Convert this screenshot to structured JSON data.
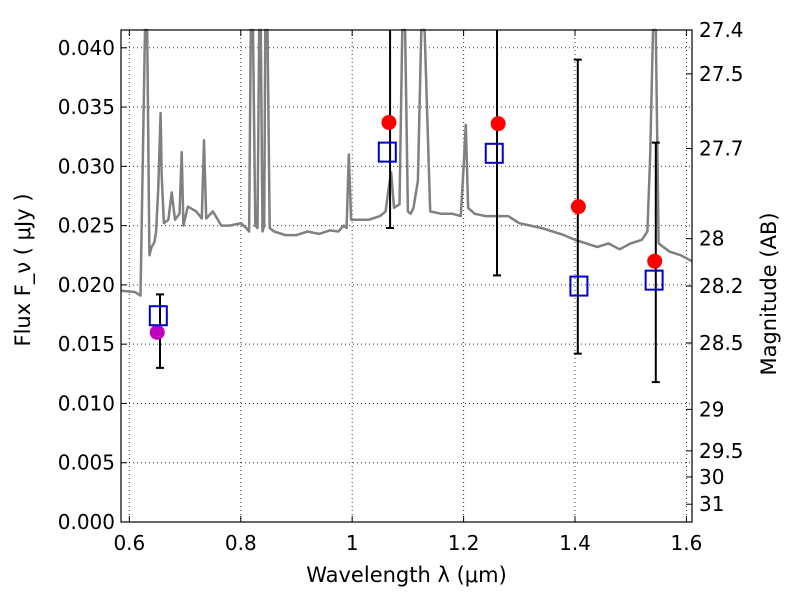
{
  "chart_data": {
    "type": "scatter",
    "title": "",
    "xlabel": "Wavelength  λ (μm)",
    "ylabel": "Flux  F_ν  ( μJy )",
    "ylabel_right": "Magnitude (AB)",
    "xlim": [
      0.585,
      1.61
    ],
    "ylim": [
      0.0,
      0.0415
    ],
    "grid": true,
    "x_ticks": [
      0.6,
      0.8,
      1.0,
      1.2,
      1.4,
      1.6
    ],
    "x_tick_labels": [
      "0.6",
      "0.8",
      "1",
      "1.2",
      "1.4",
      "1.6"
    ],
    "y_ticks": [
      0.0,
      0.005,
      0.01,
      0.015,
      0.02,
      0.025,
      0.03,
      0.035,
      0.04
    ],
    "y_tick_labels": [
      "0.000",
      "0.005",
      "0.010",
      "0.015",
      "0.020",
      "0.025",
      "0.030",
      "0.035",
      "0.040"
    ],
    "right_ticks": [
      {
        "label": "27.4",
        "flux": 0.0415
      },
      {
        "label": "27.5",
        "flux": 0.0378
      },
      {
        "label": "27.7",
        "flux": 0.0315
      },
      {
        "label": "28",
        "flux": 0.0239
      },
      {
        "label": "28.2",
        "flux": 0.0199
      },
      {
        "label": "28.5",
        "flux": 0.0151
      },
      {
        "label": "29",
        "flux": 0.0095
      },
      {
        "label": "29.5",
        "flux": 0.006
      },
      {
        "label": "30",
        "flux": 0.0038
      },
      {
        "label": "31",
        "flux": 0.0015
      }
    ],
    "series": [
      {
        "kind": "model-spectrum",
        "color": "#808080",
        "points": [
          [
            0.585,
            0.0195
          ],
          [
            0.61,
            0.0194
          ],
          [
            0.62,
            0.0191
          ],
          [
            0.628,
            0.0415
          ],
          [
            0.632,
            0.0415
          ],
          [
            0.636,
            0.0225
          ],
          [
            0.64,
            0.0232
          ],
          [
            0.645,
            0.0236
          ],
          [
            0.648,
            0.0245
          ],
          [
            0.652,
            0.0282
          ],
          [
            0.656,
            0.0345
          ],
          [
            0.658,
            0.0292
          ],
          [
            0.662,
            0.0252
          ],
          [
            0.67,
            0.0255
          ],
          [
            0.676,
            0.0278
          ],
          [
            0.682,
            0.0255
          ],
          [
            0.69,
            0.026
          ],
          [
            0.694,
            0.0312
          ],
          [
            0.697,
            0.025
          ],
          [
            0.705,
            0.0266
          ],
          [
            0.72,
            0.0262
          ],
          [
            0.73,
            0.0256
          ],
          [
            0.734,
            0.0322
          ],
          [
            0.738,
            0.0256
          ],
          [
            0.75,
            0.0262
          ],
          [
            0.765,
            0.025
          ],
          [
            0.78,
            0.025
          ],
          [
            0.8,
            0.0252
          ],
          [
            0.81,
            0.0248
          ],
          [
            0.815,
            0.0245
          ],
          [
            0.818,
            0.0415
          ],
          [
            0.822,
            0.0415
          ],
          [
            0.826,
            0.025
          ],
          [
            0.83,
            0.0248
          ],
          [
            0.833,
            0.0415
          ],
          [
            0.836,
            0.0415
          ],
          [
            0.839,
            0.0245
          ],
          [
            0.842,
            0.025
          ],
          [
            0.844,
            0.0415
          ],
          [
            0.848,
            0.0415
          ],
          [
            0.852,
            0.0248
          ],
          [
            0.86,
            0.0245
          ],
          [
            0.88,
            0.0242
          ],
          [
            0.9,
            0.0242
          ],
          [
            0.92,
            0.0245
          ],
          [
            0.94,
            0.0243
          ],
          [
            0.96,
            0.0246
          ],
          [
            0.975,
            0.0245
          ],
          [
            0.985,
            0.025
          ],
          [
            0.99,
            0.0248
          ],
          [
            0.994,
            0.031
          ],
          [
            0.998,
            0.0255
          ],
          [
            1.01,
            0.0255
          ],
          [
            1.03,
            0.0255
          ],
          [
            1.05,
            0.0258
          ],
          [
            1.06,
            0.0262
          ],
          [
            1.065,
            0.028
          ],
          [
            1.07,
            0.0295
          ],
          [
            1.075,
            0.0265
          ],
          [
            1.085,
            0.0268
          ],
          [
            1.09,
            0.0415
          ],
          [
            1.095,
            0.0415
          ],
          [
            1.1,
            0.0262
          ],
          [
            1.105,
            0.026
          ],
          [
            1.11,
            0.0265
          ],
          [
            1.118,
            0.0288
          ],
          [
            1.124,
            0.0415
          ],
          [
            1.13,
            0.0415
          ],
          [
            1.14,
            0.0262
          ],
          [
            1.16,
            0.026
          ],
          [
            1.18,
            0.026
          ],
          [
            1.195,
            0.0258
          ],
          [
            1.2,
            0.03
          ],
          [
            1.204,
            0.0335
          ],
          [
            1.208,
            0.0265
          ],
          [
            1.22,
            0.026
          ],
          [
            1.24,
            0.0258
          ],
          [
            1.26,
            0.0258
          ],
          [
            1.28,
            0.0258
          ],
          [
            1.3,
            0.0252
          ],
          [
            1.32,
            0.025
          ],
          [
            1.34,
            0.0248
          ],
          [
            1.36,
            0.0245
          ],
          [
            1.38,
            0.0242
          ],
          [
            1.4,
            0.0238
          ],
          [
            1.42,
            0.0235
          ],
          [
            1.44,
            0.0232
          ],
          [
            1.46,
            0.0235
          ],
          [
            1.48,
            0.023
          ],
          [
            1.5,
            0.0235
          ],
          [
            1.52,
            0.0238
          ],
          [
            1.53,
            0.0245
          ],
          [
            1.535,
            0.031
          ],
          [
            1.54,
            0.0415
          ],
          [
            1.545,
            0.0415
          ],
          [
            1.55,
            0.0235
          ],
          [
            1.57,
            0.0228
          ],
          [
            1.59,
            0.0225
          ],
          [
            1.61,
            0.022
          ]
        ]
      },
      {
        "kind": "observed",
        "marker": "circle",
        "color": "#ff0000",
        "points": [
          {
            "x": 1.066,
            "y": 0.0337
          },
          {
            "x": 1.262,
            "y": 0.0336
          },
          {
            "x": 1.406,
            "y": 0.0266
          },
          {
            "x": 1.543,
            "y": 0.022
          }
        ]
      },
      {
        "kind": "observed-optical",
        "marker": "circle",
        "color": "#bf00bf",
        "points": [
          {
            "x": 0.65,
            "y": 0.016
          }
        ]
      },
      {
        "kind": "model-bandpass",
        "marker": "square-open",
        "color": "#0000c8",
        "points": [
          {
            "x": 0.652,
            "y": 0.0174
          },
          {
            "x": 1.063,
            "y": 0.0312
          },
          {
            "x": 1.255,
            "y": 0.0311
          },
          {
            "x": 1.407,
            "y": 0.0199
          },
          {
            "x": 1.542,
            "y": 0.0204
          }
        ]
      },
      {
        "kind": "error-bars",
        "color": "#000000",
        "points": [
          {
            "x": 0.655,
            "low": 0.013,
            "high": 0.0192
          },
          {
            "x": 1.068,
            "low": 0.0248,
            "high": 0.0415
          },
          {
            "x": 1.26,
            "low": 0.0208,
            "high": 0.0415
          },
          {
            "x": 1.405,
            "low": 0.0142,
            "high": 0.039
          },
          {
            "x": 1.545,
            "low": 0.0118,
            "high": 0.032
          }
        ]
      }
    ]
  }
}
